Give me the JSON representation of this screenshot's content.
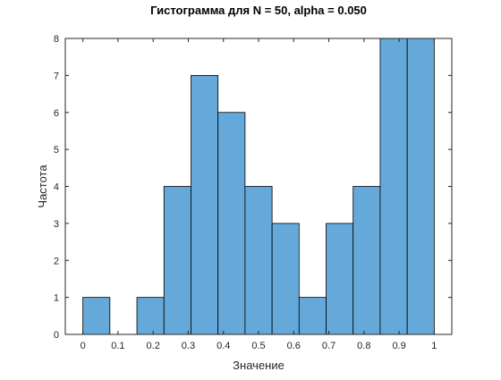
{
  "chart_data": {
    "type": "bar",
    "title": "Гистограмма для N = 50, alpha = 0.050",
    "xlabel": "Значение",
    "ylabel": "Частота",
    "bin_edges": [
      0,
      0.0769,
      0.1538,
      0.2308,
      0.3077,
      0.3846,
      0.4615,
      0.5385,
      0.6154,
      0.6923,
      0.7692,
      0.8462,
      0.9231,
      1.0
    ],
    "values": [
      1,
      0,
      1,
      4,
      7,
      6,
      4,
      3,
      1,
      3,
      4,
      8,
      8
    ],
    "xlim": [
      -0.05,
      1.05
    ],
    "ylim": [
      0,
      8
    ],
    "xticks": [
      0,
      0.1,
      0.2,
      0.3,
      0.4,
      0.5,
      0.6,
      0.7,
      0.8,
      0.9,
      1
    ],
    "xtick_labels": [
      "0",
      "0.1",
      "0.2",
      "0.3",
      "0.4",
      "0.5",
      "0.6",
      "0.7",
      "0.8",
      "0.9",
      "1"
    ],
    "yticks": [
      0,
      1,
      2,
      3,
      4,
      5,
      6,
      7,
      8
    ],
    "ytick_labels": [
      "0",
      "1",
      "2",
      "3",
      "4",
      "5",
      "6",
      "7",
      "8"
    ],
    "grid": false,
    "colors": {
      "bar_fill": "#64a9d9",
      "bar_edge": "#000000",
      "axis": "#262626"
    }
  }
}
